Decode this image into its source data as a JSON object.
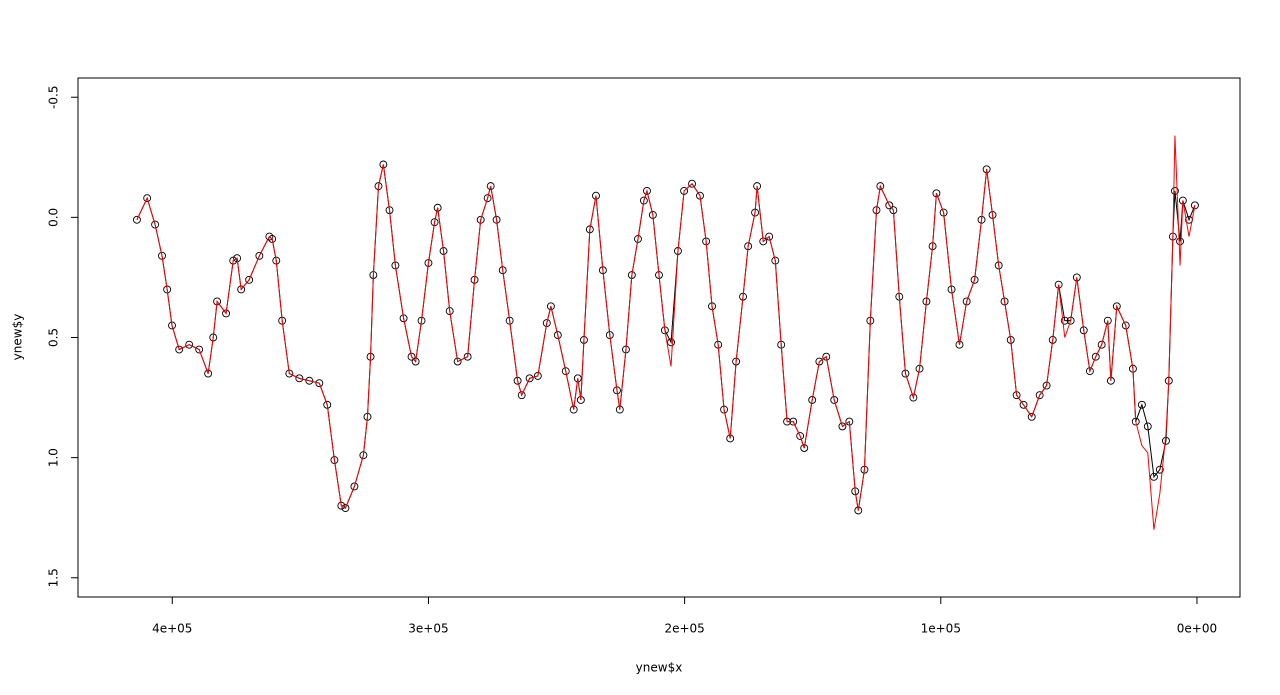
{
  "chart_data": {
    "type": "line",
    "x_label": "ynew$x",
    "y_label": "ynew$y",
    "xlim": [
      436800,
      -16800
    ],
    "ylim": [
      1.58,
      -0.58
    ],
    "xticks": [
      {
        "value": 400000,
        "label": "4e+05"
      },
      {
        "value": 300000,
        "label": "3e+05"
      },
      {
        "value": 200000,
        "label": "2e+05"
      },
      {
        "value": 100000,
        "label": "1e+05"
      },
      {
        "value": 0,
        "label": "0e+00"
      }
    ],
    "yticks": [
      -0.5,
      {
        "value": 0,
        "label": "0.0"
      },
      0.5,
      {
        "value": 1,
        "label": "1.0"
      },
      1.5
    ],
    "x": [
      413800,
      409800,
      406700,
      404000,
      402000,
      400100,
      397300,
      393400,
      389500,
      386000,
      384000,
      382500,
      379000,
      376200,
      374700,
      373100,
      370000,
      366000,
      362100,
      361000,
      359400,
      357100,
      354300,
      350400,
      346500,
      342600,
      339500,
      336700,
      334000,
      332400,
      328900,
      325400,
      323800,
      322600,
      321500,
      319500,
      317600,
      315200,
      312900,
      309700,
      306600,
      305000,
      302700,
      300000,
      297600,
      296400,
      294100,
      291700,
      288600,
      284700,
      282000,
      279600,
      276900,
      275700,
      273400,
      271000,
      268300,
      265200,
      263600,
      260500,
      257300,
      253800,
      252200,
      249500,
      246400,
      243300,
      241700,
      240500,
      239300,
      237000,
      234600,
      231900,
      229200,
      226400,
      225300,
      222900,
      220600,
      218200,
      215900,
      214700,
      212400,
      210000,
      207700,
      205300,
      202600,
      200200,
      197100,
      194000,
      191600,
      189300,
      186900,
      184600,
      182200,
      179900,
      177200,
      175200,
      172500,
      171700,
      169300,
      167000,
      164600,
      162300,
      160000,
      157600,
      154900,
      153300,
      150200,
      147400,
      144700,
      141600,
      138400,
      135700,
      133400,
      132200,
      129800,
      127500,
      125100,
      123600,
      120100,
      118500,
      116200,
      113800,
      110700,
      108300,
      105600,
      103200,
      101700,
      98900,
      95800,
      92700,
      89900,
      86800,
      84100,
      82100,
      79800,
      77400,
      75100,
      72700,
      70400,
      67700,
      64500,
      61400,
      58700,
      56300,
      54000,
      51600,
      49300,
      46900,
      44200,
      41800,
      39500,
      37200,
      34800,
      33600,
      31300,
      27800,
      25000,
      23900,
      21500,
      19200,
      16800,
      14500,
      12100,
      11000,
      9400,
      8600,
      6600,
      5500,
      3100,
      800
    ],
    "series": [
      {
        "color": "#000000",
        "markers": true,
        "values": [
          0.01,
          -0.08,
          0.03,
          0.16,
          0.3,
          0.45,
          0.55,
          0.53,
          0.55,
          0.65,
          0.5,
          0.35,
          0.4,
          0.18,
          0.17,
          0.3,
          0.26,
          0.16,
          0.08,
          0.09,
          0.18,
          0.43,
          0.65,
          0.67,
          0.68,
          0.69,
          0.78,
          1.01,
          1.2,
          1.21,
          1.12,
          0.99,
          0.83,
          0.58,
          0.24,
          -0.13,
          -0.22,
          -0.03,
          0.2,
          0.42,
          0.58,
          0.6,
          0.43,
          0.19,
          0.02,
          -0.04,
          0.14,
          0.39,
          0.6,
          0.58,
          0.26,
          0.01,
          -0.08,
          -0.13,
          0.01,
          0.22,
          0.43,
          0.68,
          0.74,
          0.67,
          0.66,
          0.44,
          0.37,
          0.49,
          0.64,
          0.8,
          0.67,
          0.76,
          0.51,
          0.05,
          -0.09,
          0.22,
          0.49,
          0.72,
          0.8,
          0.55,
          0.24,
          0.09,
          -0.07,
          -0.11,
          -0.01,
          0.24,
          0.47,
          0.52,
          0.14,
          -0.11,
          -0.14,
          -0.09,
          0.1,
          0.37,
          0.53,
          0.8,
          0.92,
          0.6,
          0.33,
          0.12,
          -0.02,
          -0.13,
          0.1,
          0.08,
          0.18,
          0.53,
          0.85,
          0.85,
          0.91,
          0.96,
          0.76,
          0.6,
          0.58,
          0.76,
          0.87,
          0.85,
          1.14,
          1.22,
          1.05,
          0.43,
          -0.03,
          -0.13,
          -0.05,
          -0.03,
          0.33,
          0.65,
          0.75,
          0.63,
          0.35,
          0.12,
          -0.1,
          -0.02,
          0.3,
          0.53,
          0.35,
          0.26,
          0.01,
          -0.2,
          -0.01,
          0.2,
          0.35,
          0.51,
          0.74,
          0.78,
          0.83,
          0.74,
          0.7,
          0.51,
          0.28,
          0.43,
          0.43,
          0.25,
          0.47,
          0.64,
          0.58,
          0.53,
          0.43,
          0.68,
          0.37,
          0.45,
          0.63,
          0.85,
          0.78,
          0.87,
          1.08,
          1.05,
          0.93,
          0.68,
          0.08,
          -0.11,
          0.1,
          -0.07,
          0.01,
          -0.05
        ]
      },
      {
        "color": "#ff0000",
        "markers": false,
        "values": [
          0.01,
          -0.08,
          0.03,
          0.16,
          0.3,
          0.45,
          0.55,
          0.53,
          0.55,
          0.65,
          0.5,
          0.35,
          0.4,
          0.18,
          0.17,
          0.3,
          0.26,
          0.16,
          0.08,
          0.09,
          0.18,
          0.43,
          0.65,
          0.67,
          0.68,
          0.69,
          0.78,
          1.01,
          1.2,
          1.21,
          1.12,
          0.99,
          0.83,
          0.58,
          0.24,
          -0.13,
          -0.22,
          -0.03,
          0.2,
          0.42,
          0.58,
          0.6,
          0.43,
          0.19,
          0.02,
          -0.04,
          0.14,
          0.39,
          0.6,
          0.58,
          0.26,
          0.01,
          -0.08,
          -0.13,
          0.01,
          0.22,
          0.43,
          0.68,
          0.74,
          0.67,
          0.66,
          0.44,
          0.37,
          0.49,
          0.64,
          0.8,
          0.67,
          0.76,
          0.51,
          0.05,
          -0.09,
          0.22,
          0.49,
          0.72,
          0.8,
          0.55,
          0.24,
          0.09,
          -0.07,
          -0.11,
          -0.01,
          0.24,
          0.47,
          0.62,
          0.14,
          -0.11,
          -0.14,
          -0.09,
          0.1,
          0.37,
          0.53,
          0.8,
          0.92,
          0.6,
          0.33,
          0.12,
          -0.02,
          -0.13,
          0.1,
          0.08,
          0.18,
          0.53,
          0.85,
          0.85,
          0.91,
          0.96,
          0.76,
          0.6,
          0.58,
          0.76,
          0.87,
          0.85,
          1.14,
          1.22,
          1.05,
          0.43,
          -0.03,
          -0.13,
          -0.05,
          -0.03,
          0.33,
          0.65,
          0.75,
          0.63,
          0.35,
          0.12,
          -0.1,
          -0.02,
          0.3,
          0.53,
          0.35,
          0.26,
          0.01,
          -0.2,
          -0.01,
          0.2,
          0.35,
          0.51,
          0.74,
          0.78,
          0.83,
          0.74,
          0.7,
          0.51,
          0.28,
          0.5,
          0.43,
          0.25,
          0.47,
          0.64,
          0.58,
          0.53,
          0.43,
          0.68,
          0.37,
          0.45,
          0.63,
          0.85,
          0.95,
          0.98,
          1.3,
          1.15,
          0.9,
          0.68,
          0.08,
          -0.34,
          0.2,
          -0.07,
          0.08,
          -0.05
        ]
      }
    ]
  }
}
